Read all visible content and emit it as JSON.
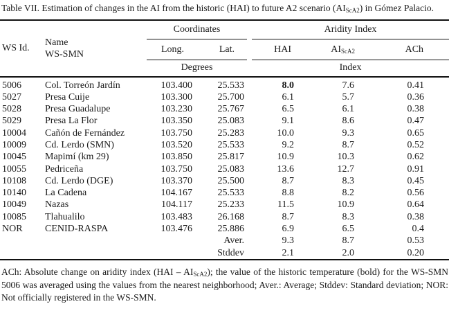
{
  "colors": {
    "text": "#1a1a1a",
    "rule": "#111111",
    "background": "#ffffff"
  },
  "title": {
    "pre": "Table VII. Estimation of changes in the AI from the historic (HAI) to future A2 scenario (AI",
    "sub": "ScA2",
    "post": ") in Gómez Palacio."
  },
  "table": {
    "headers": {
      "ws_id": "WS Id.",
      "name_line1": "Name",
      "name_line2": "WS-SMN",
      "coordinates": "Coordinates",
      "aridity_index": "Aridity Index",
      "long": "Long.",
      "lat": "Lat.",
      "hai": "HAI",
      "ai_pre": "AI",
      "ai_sub": "ScA2",
      "ach": "ACh",
      "degrees": "Degrees",
      "index": "Index"
    },
    "rows": [
      {
        "id": "5006",
        "name": "Col. Torreón Jardín",
        "long": "103.400",
        "lat": "25.533",
        "hai": "8.0",
        "ai": "7.6",
        "ach": "0.41",
        "hai_bold": true
      },
      {
        "id": "5027",
        "name": "Presa Cuije",
        "long": "103.300",
        "lat": "25.700",
        "hai": "6.1",
        "ai": "5.7",
        "ach": "0.36"
      },
      {
        "id": "5028",
        "name": "Presa Guadalupe",
        "long": "103.230",
        "lat": "25.767",
        "hai": "6.5",
        "ai": "6.1",
        "ach": "0.38"
      },
      {
        "id": "5029",
        "name": "Presa La Flor",
        "long": "103.350",
        "lat": "25.083",
        "hai": "9.1",
        "ai": "8.6",
        "ach": "0.47"
      },
      {
        "id": "10004",
        "name": "Cañón de Fernández",
        "long": "103.750",
        "lat": "25.283",
        "hai": "10.0",
        "ai": "9.3",
        "ach": "0.65"
      },
      {
        "id": "10009",
        "name": "Cd. Lerdo (SMN)",
        "long": "103.520",
        "lat": "25.533",
        "hai": "9.2",
        "ai": "8.7",
        "ach": "0.52"
      },
      {
        "id": "10045",
        "name": "Mapimí (km 29)",
        "long": "103.850",
        "lat": "25.817",
        "hai": "10.9",
        "ai": "10.3",
        "ach": "0.62"
      },
      {
        "id": "10055",
        "name": "Pedriceña",
        "long": "103.750",
        "lat": "25.083",
        "hai": "13.6",
        "ai": "12.7",
        "ach": "0.91"
      },
      {
        "id": "10108",
        "name": "Cd. Lerdo (DGE)",
        "long": "103.370",
        "lat": "25.500",
        "hai": "8.7",
        "ai": "8.3",
        "ach": "0.45"
      },
      {
        "id": "10140",
        "name": "La Cadena",
        "long": "104.167",
        "lat": "25.533",
        "hai": "8.8",
        "ai": "8.2",
        "ach": "0.56"
      },
      {
        "id": "10049",
        "name": "Nazas",
        "long": "104.117",
        "lat": "25.233",
        "hai": "11.5",
        "ai": "10.9",
        "ach": "0.64"
      },
      {
        "id": "10085",
        "name": "Tlahualilo",
        "long": "103.483",
        "lat": "26.168",
        "hai": "8.7",
        "ai": "8.3",
        "ach": "0.38"
      },
      {
        "id": "NOR",
        "name": "CENID-RASPA",
        "long": "103.476",
        "lat": "25.886",
        "hai": "6.9",
        "ai": "6.5",
        "ach": "0.4"
      },
      {
        "id": "",
        "name": "",
        "long": "",
        "lat": "Aver.",
        "hai": "9.3",
        "ai": "8.7",
        "ach": "0.53"
      },
      {
        "id": "",
        "name": "",
        "long": "",
        "lat": "Stddev",
        "hai": "2.1",
        "ai": "2.0",
        "ach": "0.20"
      }
    ]
  },
  "footnote": {
    "pre": "ACh: Absolute change on aridity index (HAI – AI",
    "sub": "ScA2",
    "post": "); the value of the historic temperature (bold) for the WS-SMN 5006 was averaged using the values from the nearest neighborhood; Aver.: Average; Stddev: Standard deviation; NOR: Not officially registered in the WS-SMN."
  }
}
